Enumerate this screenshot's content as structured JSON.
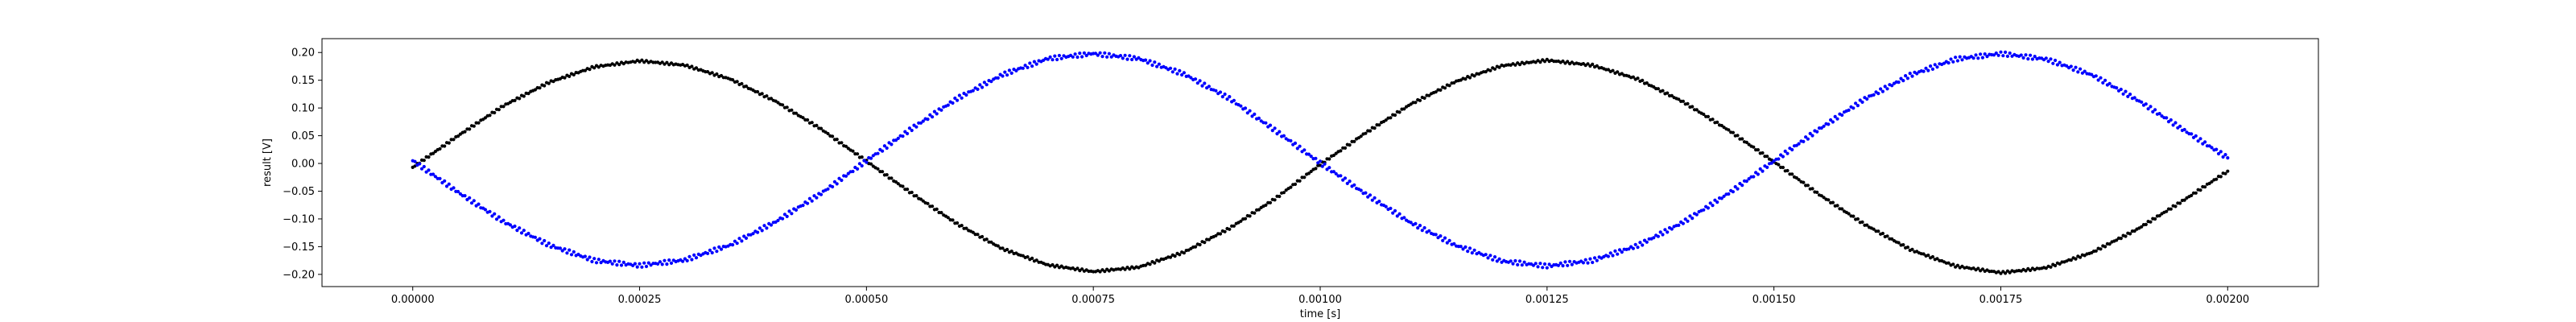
{
  "chart_data": {
    "type": "scatter",
    "title": "",
    "xlabel": "time [s]",
    "ylabel": "result [V]",
    "xlim": [
      -0.0001,
      0.0021
    ],
    "ylim": [
      -0.222,
      0.225
    ],
    "grid": false,
    "legend": "none",
    "x_ticks": [
      0,
      0.00025,
      0.0005,
      0.00075,
      0.001,
      0.00125,
      0.0015,
      0.00175,
      0.002
    ],
    "x_tick_labels": [
      "0.00000",
      "0.00025",
      "0.00050",
      "0.00075",
      "0.00100",
      "0.00125",
      "0.00150",
      "0.00175",
      "0.00200"
    ],
    "y_ticks": [
      -0.2,
      -0.15,
      -0.1,
      -0.05,
      0,
      0.05,
      0.1,
      0.15,
      0.2
    ],
    "y_tick_labels": [
      "−0.20",
      "−0.15",
      "−0.10",
      "−0.05",
      "0.00",
      "0.05",
      "0.10",
      "0.15",
      "0.20"
    ],
    "series": [
      {
        "color": "#000000",
        "x": [
          0,
          5e-05,
          0.0001,
          0.00015,
          0.0002,
          0.00025,
          0.0003,
          0.00035,
          0.0004,
          0.00045,
          0.0005,
          0.00055,
          0.0006,
          0.00065,
          0.0007,
          0.00075,
          0.0008,
          0.00085,
          0.0009,
          0.00095,
          0.001,
          0.00105,
          0.0011,
          0.00115,
          0.0012,
          0.00125,
          0.0013,
          0.00135,
          0.0014,
          0.00145,
          0.0015,
          0.00155,
          0.0016,
          0.00165,
          0.0017,
          0.00175,
          0.0018,
          0.00185,
          0.0019,
          0.00195,
          0.002
        ],
        "y": [
          -0.007,
          0.05,
          0.104,
          0.146,
          0.174,
          0.185,
          0.177,
          0.152,
          0.112,
          0.062,
          0.004,
          -0.054,
          -0.109,
          -0.154,
          -0.183,
          -0.195,
          -0.187,
          -0.16,
          -0.117,
          -0.064,
          -0.002,
          0.055,
          0.107,
          0.148,
          0.176,
          0.186,
          0.177,
          0.152,
          0.111,
          0.06,
          0.003,
          -0.056,
          -0.11,
          -0.155,
          -0.185,
          -0.197,
          -0.188,
          -0.161,
          -0.119,
          -0.068,
          -0.014
        ]
      },
      {
        "color": "#0000ff",
        "x": [
          0,
          5e-05,
          0.0001,
          0.00015,
          0.0002,
          0.00025,
          0.0003,
          0.00035,
          0.0004,
          0.00045,
          0.0005,
          0.00055,
          0.0006,
          0.00065,
          0.0007,
          0.00075,
          0.0008,
          0.00085,
          0.0009,
          0.00095,
          0.001,
          0.00105,
          0.0011,
          0.00115,
          0.0012,
          0.00125,
          0.0013,
          0.00135,
          0.0014,
          0.00145,
          0.0015,
          0.00155,
          0.0016,
          0.00165,
          0.0017,
          0.00175,
          0.0018,
          0.00185,
          0.0019,
          0.00195,
          0.002
        ],
        "y": [
          0.005,
          -0.052,
          -0.105,
          -0.147,
          -0.175,
          -0.184,
          -0.174,
          -0.147,
          -0.105,
          -0.054,
          0.005,
          0.063,
          0.117,
          0.16,
          0.189,
          0.198,
          0.189,
          0.161,
          0.117,
          0.06,
          0.001,
          -0.055,
          -0.107,
          -0.148,
          -0.176,
          -0.185,
          -0.175,
          -0.148,
          -0.106,
          -0.054,
          0.004,
          0.062,
          0.116,
          0.159,
          0.188,
          0.198,
          0.188,
          0.16,
          0.115,
          0.062,
          0.01
        ]
      }
    ]
  }
}
